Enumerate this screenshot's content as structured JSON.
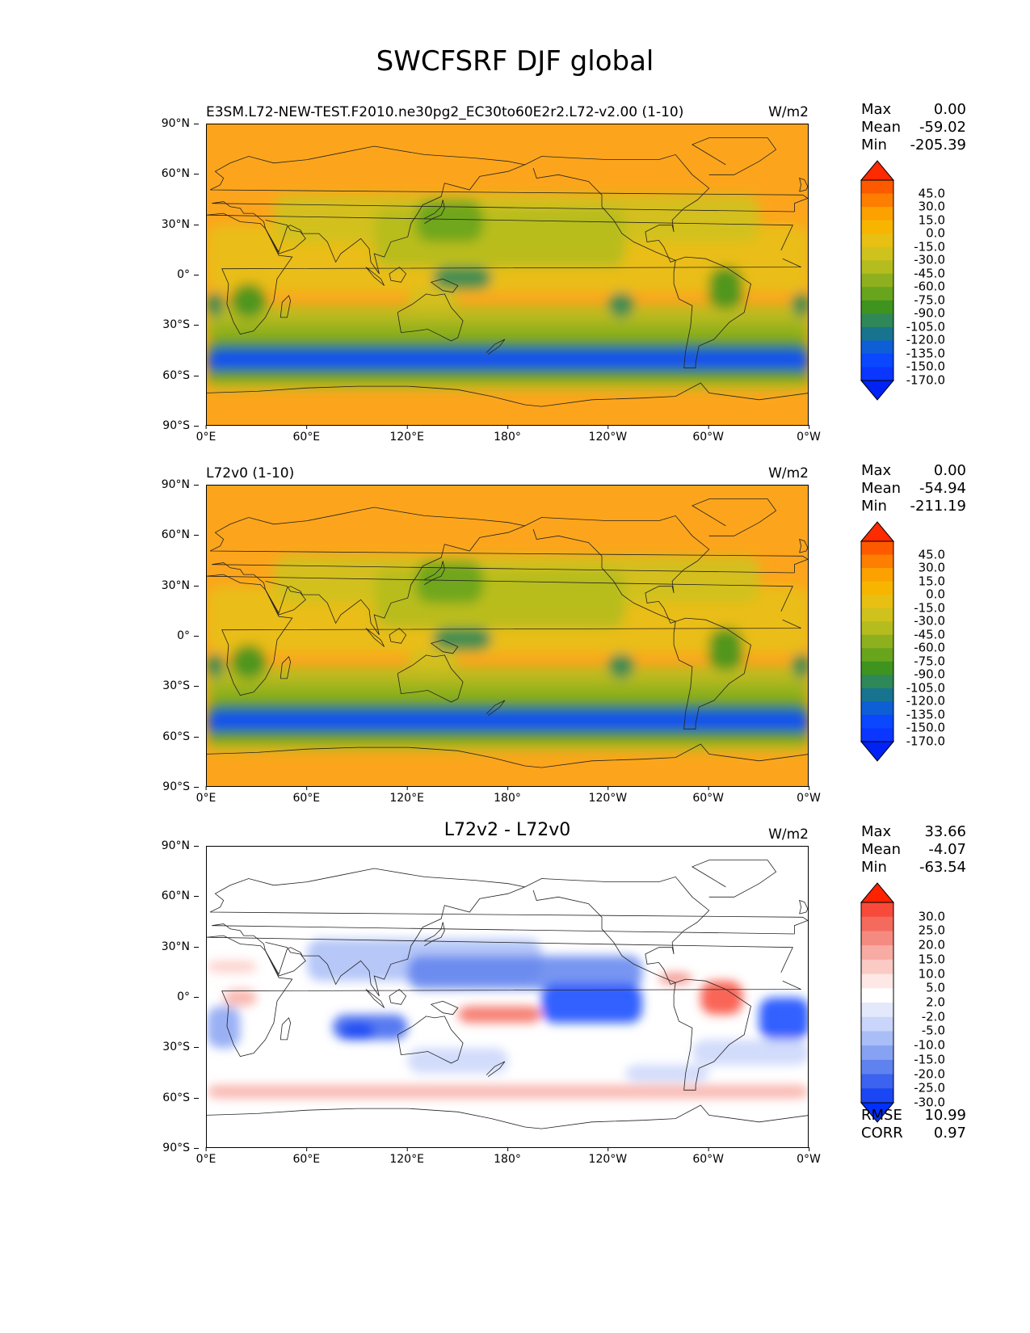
{
  "title": "SWCFSRF DJF global",
  "panels": [
    {
      "title_left": "E3SM.L72-NEW-TEST.F2010.ne30pg2_EC30to60E2r2.L72-v2.00 (1-10)",
      "title_center": "",
      "units": "W/m2",
      "stats": {
        "max_label": "Max",
        "max": "0.00",
        "mean_label": "Mean",
        "mean": "-59.02",
        "min_label": "Min",
        "min": "-205.39"
      },
      "colorbar": {
        "labels": [
          "45.0",
          "30.0",
          "15.0",
          "0.0",
          "-15.0",
          "-30.0",
          "-45.0",
          "-60.0",
          "-75.0",
          "-90.0",
          "-105.0",
          "-120.0",
          "-135.0",
          "-150.0",
          "-170.0"
        ],
        "colors": [
          "#fe2a00",
          "#fd5a00",
          "#fd7e00",
          "#fca100",
          "#f7b500",
          "#e8c014",
          "#d0c21c",
          "#b5bc1e",
          "#8fb01e",
          "#68a41c",
          "#3f9420",
          "#2f8858",
          "#18748e",
          "#0e5ed6",
          "#0a47ff",
          "#0a36ff",
          "#0022f5"
        ]
      }
    },
    {
      "title_left": "L72v0 (1-10)",
      "title_center": "",
      "units": "W/m2",
      "stats": {
        "max_label": "Max",
        "max": "0.00",
        "mean_label": "Mean",
        "mean": "-54.94",
        "min_label": "Min",
        "min": "-211.19"
      },
      "colorbar": {
        "labels": [
          "45.0",
          "30.0",
          "15.0",
          "0.0",
          "-15.0",
          "-30.0",
          "-45.0",
          "-60.0",
          "-75.0",
          "-90.0",
          "-105.0",
          "-120.0",
          "-135.0",
          "-150.0",
          "-170.0"
        ],
        "colors": [
          "#fe2a00",
          "#fd5a00",
          "#fd7e00",
          "#fca100",
          "#f7b500",
          "#e8c014",
          "#d0c21c",
          "#b5bc1e",
          "#8fb01e",
          "#68a41c",
          "#3f9420",
          "#2f8858",
          "#18748e",
          "#0e5ed6",
          "#0a47ff",
          "#0a36ff",
          "#0022f5"
        ]
      }
    },
    {
      "title_left": "",
      "title_center": "L72v2 - L72v0",
      "units": "W/m2",
      "stats": {
        "max_label": "Max",
        "max": "33.66",
        "mean_label": "Mean",
        "mean": "-4.07",
        "min_label": "Min",
        "min": "-63.54"
      },
      "colorbar": {
        "labels": [
          "30.0",
          "25.0",
          "20.0",
          "15.0",
          "10.0",
          "5.0",
          "2.0",
          "-2.0",
          "-5.0",
          "-10.0",
          "-15.0",
          "-20.0",
          "-25.0",
          "-30.0"
        ],
        "colors": [
          "#ff2200",
          "#f84a3a",
          "#f46b5e",
          "#f58a80",
          "#f8aba3",
          "#fbcac4",
          "#fde8e5",
          "#ffffff",
          "#e3e9fb",
          "#c9d5fa",
          "#a9bdf7",
          "#87a2f3",
          "#5f82ee",
          "#3b63ef",
          "#1a46f4",
          "#0030ff"
        ]
      },
      "rmse_label": "RMSE",
      "rmse": "10.99",
      "corr_label": "CORR",
      "corr": "0.97"
    }
  ],
  "axes": {
    "y_ticks": [
      "90°N",
      "60°N",
      "30°N",
      "0°",
      "30°S",
      "60°S",
      "90°S"
    ],
    "x_ticks": [
      "0°E",
      "60°E",
      "120°E",
      "180°",
      "120°W",
      "60°W",
      "0°W"
    ]
  }
}
